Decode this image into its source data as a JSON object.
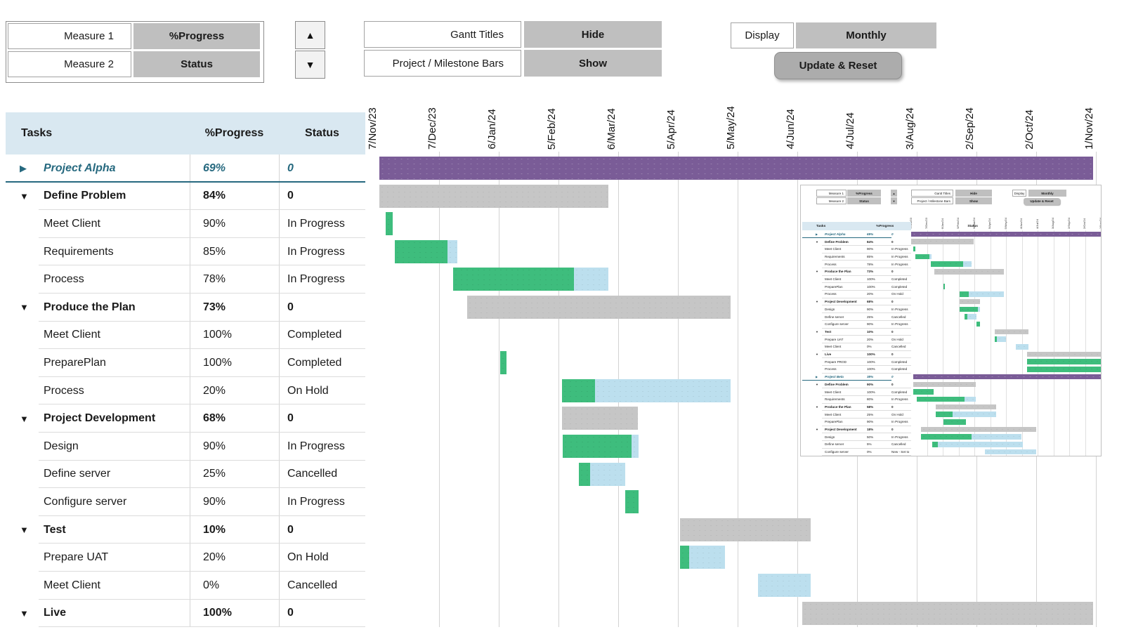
{
  "colors": {
    "purple": "#7A5C97",
    "green": "#3EBD7D",
    "blue": "#BCDFEE",
    "bar_gray": "#C6C6C6",
    "header_blue": "#D9E8F1",
    "teal": "#26697F",
    "button_gray": "#BFBFBF",
    "button_dark": "#ACACAC"
  },
  "controls": {
    "measure1_label": "Measure 1",
    "measure1_value": "%Progress",
    "measure2_label": "Measure 2",
    "measure2_value": "Status",
    "spinner_up": "▲",
    "spinner_down": "▼",
    "gantt_titles_label": "Gantt Titles",
    "gantt_titles_value": "Hide",
    "bars_label": "Project / Milestone Bars",
    "bars_value": "Show",
    "display_label": "Display",
    "display_value": "Monthly",
    "update_button": "Update & Reset"
  },
  "table": {
    "headers": {
      "tasks": "Tasks",
      "progress": "%Progress",
      "status": "Status"
    },
    "rows": [
      {
        "task": "Project Alpha",
        "progress": "69%",
        "status": "0",
        "type": "project",
        "arrow": "right",
        "bar": [
          [
            0,
            100,
            "purple"
          ]
        ]
      },
      {
        "task": "Define Problem",
        "progress": "84%",
        "status": "0",
        "type": "group",
        "arrow": "down",
        "bar": [
          [
            0,
            32.1,
            "gray"
          ]
        ]
      },
      {
        "task": "Meet Client",
        "progress": "90%",
        "status": "In Progress",
        "type": "child",
        "arrow": "none",
        "bar": [
          [
            0.9,
            1.0,
            "green"
          ]
        ]
      },
      {
        "task": "Requirements",
        "progress": "85%",
        "status": "In Progress",
        "type": "child",
        "arrow": "none",
        "bar": [
          [
            2.2,
            7.3,
            "green"
          ],
          [
            9.5,
            1.4,
            "blue"
          ]
        ]
      },
      {
        "task": "Process",
        "progress": "78%",
        "status": "In Progress",
        "type": "child",
        "arrow": "none",
        "bar": [
          [
            10.3,
            17.0,
            "green"
          ],
          [
            27.3,
            4.8,
            "blue"
          ]
        ]
      },
      {
        "task": "Produce the Plan",
        "progress": "73%",
        "status": "0",
        "type": "group",
        "arrow": "down",
        "bar": [
          [
            12.3,
            36.9,
            "gray"
          ]
        ]
      },
      {
        "task": "Meet Client",
        "progress": "100%",
        "status": "Completed",
        "type": "child",
        "arrow": "none",
        "bar": []
      },
      {
        "task": "PreparePlan",
        "progress": "100%",
        "status": "Completed",
        "type": "child",
        "arrow": "none",
        "bar": [
          [
            16.9,
            0.9,
            "green"
          ]
        ]
      },
      {
        "task": "Process",
        "progress": "20%",
        "status": "On Hold",
        "type": "child",
        "arrow": "none",
        "bar": [
          [
            25.6,
            4.6,
            "green"
          ],
          [
            30.2,
            19.0,
            "blue"
          ]
        ]
      },
      {
        "task": "Project Development",
        "progress": "68%",
        "status": "0",
        "type": "group",
        "arrow": "down",
        "bar": [
          [
            25.6,
            10.6,
            "gray"
          ]
        ]
      },
      {
        "task": "Design",
        "progress": "90%",
        "status": "In Progress",
        "type": "child",
        "arrow": "none",
        "bar": [
          [
            25.7,
            9.6,
            "green"
          ],
          [
            35.3,
            1.0,
            "blue"
          ]
        ]
      },
      {
        "task": "Define server",
        "progress": "25%",
        "status": "Cancelled",
        "type": "child",
        "arrow": "none",
        "bar": [
          [
            28.0,
            1.5,
            "green"
          ],
          [
            29.5,
            4.9,
            "blue"
          ]
        ]
      },
      {
        "task": "Configure server",
        "progress": "90%",
        "status": "In Progress",
        "type": "child",
        "arrow": "none",
        "bar": [
          [
            34.4,
            1.9,
            "green"
          ]
        ]
      },
      {
        "task": "Test",
        "progress": "10%",
        "status": "0",
        "type": "group",
        "arrow": "down",
        "bar": [
          [
            42.1,
            18.3,
            "gray"
          ]
        ]
      },
      {
        "task": "Prepare UAT",
        "progress": "20%",
        "status": "On Hold",
        "type": "child",
        "arrow": "none",
        "bar": [
          [
            42.1,
            1.3,
            "green"
          ],
          [
            43.4,
            5.0,
            "blue"
          ]
        ]
      },
      {
        "task": "Meet Client",
        "progress": "0%",
        "status": "Cancelled",
        "type": "child",
        "arrow": "none",
        "bar": [
          [
            53.1,
            7.3,
            "blue"
          ]
        ]
      },
      {
        "task": "Live",
        "progress": "100%",
        "status": "0",
        "type": "group",
        "arrow": "down",
        "bar": [
          [
            59.3,
            40.7,
            "gray"
          ]
        ]
      }
    ]
  },
  "gantt": {
    "months": [
      "7/Nov/23",
      "7/Dec/23",
      "6/Jan/24",
      "5/Feb/24",
      "6/Mar/24",
      "5/Apr/24",
      "5/May/24",
      "4/Jun/24",
      "4/Jul/24",
      "3/Aug/24",
      "2/Sep/24",
      "2/Oct/24",
      "1/Nov/24"
    ]
  },
  "inset": {
    "rows": [
      {
        "task": "Project Alpha",
        "progress": "69%",
        "status": "0",
        "type": "project",
        "arrow": "right",
        "bar": [
          [
            0,
            100,
            "purple"
          ]
        ]
      },
      {
        "task": "Define Problem",
        "progress": "84%",
        "status": "0",
        "type": "group",
        "arrow": "down",
        "bar": [
          [
            0,
            33,
            "gray"
          ]
        ]
      },
      {
        "task": "Meet Client",
        "progress": "90%",
        "status": "In Progress",
        "type": "child",
        "arrow": "none",
        "bar": [
          [
            1,
            1.2,
            "green"
          ]
        ]
      },
      {
        "task": "Requirements",
        "progress": "85%",
        "status": "In Progress",
        "type": "child",
        "arrow": "none",
        "bar": [
          [
            2.2,
            7.3,
            "green"
          ],
          [
            9.5,
            1.4,
            "blue"
          ]
        ]
      },
      {
        "task": "Process",
        "progress": "78%",
        "status": "In Progress",
        "type": "child",
        "arrow": "none",
        "bar": [
          [
            10.3,
            17,
            "green"
          ],
          [
            27.3,
            4.7,
            "blue"
          ]
        ]
      },
      {
        "task": "Produce the Plan",
        "progress": "73%",
        "status": "0",
        "type": "group",
        "arrow": "down",
        "bar": [
          [
            12.3,
            36.7,
            "gray"
          ]
        ]
      },
      {
        "task": "Meet Client",
        "progress": "100%",
        "status": "Completed",
        "type": "child",
        "arrow": "none",
        "bar": []
      },
      {
        "task": "PreparePlan",
        "progress": "100%",
        "status": "Completed",
        "type": "child",
        "arrow": "none",
        "bar": [
          [
            16.9,
            0.9,
            "green"
          ]
        ]
      },
      {
        "task": "Process",
        "progress": "20%",
        "status": "On Hold",
        "type": "child",
        "arrow": "none",
        "bar": [
          [
            25.6,
            4.6,
            "green"
          ],
          [
            30.2,
            18.8,
            "blue"
          ]
        ]
      },
      {
        "task": "Project Development",
        "progress": "68%",
        "status": "0",
        "type": "group",
        "arrow": "down",
        "bar": [
          [
            25.6,
            10.6,
            "gray"
          ]
        ]
      },
      {
        "task": "Design",
        "progress": "90%",
        "status": "In Progress",
        "type": "child",
        "arrow": "none",
        "bar": [
          [
            25.7,
            9.6,
            "green"
          ],
          [
            35.3,
            1,
            "blue"
          ]
        ]
      },
      {
        "task": "Define server",
        "progress": "25%",
        "status": "Cancelled",
        "type": "child",
        "arrow": "none",
        "bar": [
          [
            28,
            1.5,
            "green"
          ],
          [
            29.5,
            4.9,
            "blue"
          ]
        ]
      },
      {
        "task": "Configure server",
        "progress": "90%",
        "status": "In Progress",
        "type": "child",
        "arrow": "none",
        "bar": [
          [
            34.4,
            1.9,
            "green"
          ]
        ]
      },
      {
        "task": "Test",
        "progress": "10%",
        "status": "0",
        "type": "group",
        "arrow": "down",
        "bar": [
          [
            44,
            18,
            "gray"
          ]
        ]
      },
      {
        "task": "Prepare UAT",
        "progress": "20%",
        "status": "On Hold",
        "type": "child",
        "arrow": "none",
        "bar": [
          [
            44,
            1.3,
            "green"
          ],
          [
            45.3,
            4.7,
            "blue"
          ]
        ]
      },
      {
        "task": "Meet Client",
        "progress": "0%",
        "status": "Cancelled",
        "type": "child",
        "arrow": "none",
        "bar": [
          [
            55,
            7,
            "blue"
          ]
        ]
      },
      {
        "task": "Live",
        "progress": "100%",
        "status": "0",
        "type": "group",
        "arrow": "down",
        "bar": [
          [
            61,
            39,
            "gray"
          ]
        ]
      },
      {
        "task": "Prepare PROD",
        "progress": "100%",
        "status": "Completed",
        "type": "child",
        "arrow": "none",
        "bar": [
          [
            61,
            39,
            "green"
          ]
        ]
      },
      {
        "task": "Process",
        "progress": "100%",
        "status": "Completed",
        "type": "child",
        "arrow": "none",
        "bar": [
          [
            61,
            39,
            "green"
          ]
        ]
      },
      {
        "task": "Project Beta",
        "progress": "38%",
        "status": "0",
        "type": "project",
        "arrow": "right",
        "bar": [
          [
            1,
            99,
            "purple"
          ]
        ]
      },
      {
        "task": "Define Problem",
        "progress": "90%",
        "status": "0",
        "type": "group",
        "arrow": "down",
        "bar": [
          [
            1,
            33,
            "gray"
          ]
        ]
      },
      {
        "task": "Meet Client",
        "progress": "100%",
        "status": "Completed",
        "type": "child",
        "arrow": "none",
        "bar": [
          [
            1,
            11,
            "green"
          ]
        ]
      },
      {
        "task": "Requirements",
        "progress": "80%",
        "status": "In Progress",
        "type": "child",
        "arrow": "none",
        "bar": [
          [
            3,
            25,
            "green"
          ],
          [
            28,
            6,
            "blue"
          ]
        ]
      },
      {
        "task": "Produce the Plan",
        "progress": "58%",
        "status": "0",
        "type": "group",
        "arrow": "down",
        "bar": [
          [
            13,
            32,
            "gray"
          ]
        ]
      },
      {
        "task": "Meet Client",
        "progress": "25%",
        "status": "On Hold",
        "type": "child",
        "arrow": "none",
        "bar": [
          [
            13,
            9,
            "green"
          ],
          [
            22,
            23,
            "blue"
          ]
        ]
      },
      {
        "task": "PreparePlan",
        "progress": "90%",
        "status": "In Progress",
        "type": "child",
        "arrow": "none",
        "bar": [
          [
            17,
            12,
            "green"
          ]
        ]
      },
      {
        "task": "Project Development",
        "progress": "18%",
        "status": "0",
        "type": "group",
        "arrow": "down",
        "bar": [
          [
            5,
            61,
            "gray"
          ]
        ]
      },
      {
        "task": "Design",
        "progress": "50%",
        "status": "In Progress",
        "type": "child",
        "arrow": "none",
        "bar": [
          [
            5,
            27,
            "green"
          ],
          [
            32,
            26,
            "blue"
          ]
        ]
      },
      {
        "task": "Define server",
        "progress": "5%",
        "status": "Cancelled",
        "type": "child",
        "arrow": "none",
        "bar": [
          [
            11,
            3,
            "green"
          ],
          [
            14,
            45,
            "blue"
          ]
        ]
      },
      {
        "task": "Configure server",
        "progress": "0%",
        "status": "New - Set to",
        "type": "child",
        "arrow": "none",
        "bar": [
          [
            39,
            27,
            "blue"
          ]
        ]
      }
    ]
  }
}
